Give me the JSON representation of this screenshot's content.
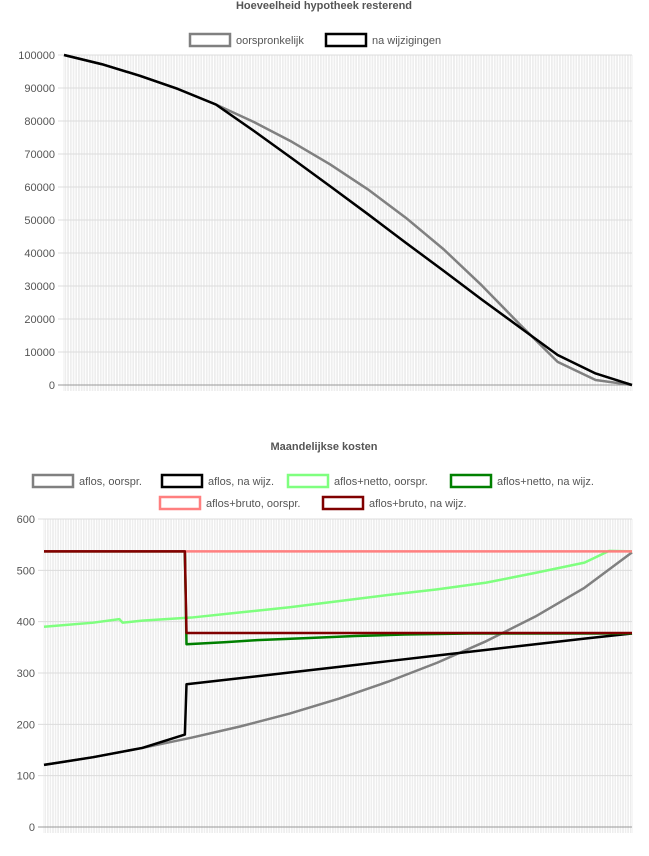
{
  "chart_data": [
    {
      "type": "line",
      "title": "Hoeveelheid hypotheek resterend",
      "xlabel": "",
      "ylabel": "",
      "ylim": [
        0,
        100000
      ],
      "yticks": [
        "0",
        "10000",
        "20000",
        "30000",
        "40000",
        "50000",
        "60000",
        "70000",
        "80000",
        "90000",
        "100000"
      ],
      "x_count": 360,
      "grid": true,
      "legend": "top",
      "series": [
        {
          "name": "oorspronkelijk",
          "color": "#808080",
          "x": [
            0,
            24,
            48,
            72,
            96,
            120,
            144,
            168,
            192,
            216,
            240,
            264,
            288,
            312,
            336,
            359
          ],
          "values": [
            100000,
            97200,
            93700,
            89700,
            85000,
            79700,
            73700,
            66900,
            59300,
            50700,
            41100,
            30200,
            18400,
            7000,
            1500,
            0
          ]
        },
        {
          "name": "na wijzigingen",
          "color": "#000000",
          "x": [
            0,
            24,
            48,
            72,
            96,
            120,
            144,
            168,
            192,
            216,
            240,
            264,
            288,
            312,
            336,
            359
          ],
          "values": [
            100000,
            97200,
            93700,
            89700,
            85000,
            77000,
            68700,
            60300,
            51800,
            43100,
            34600,
            25900,
            17500,
            9100,
            3500,
            0
          ]
        }
      ]
    },
    {
      "type": "line",
      "title": "Maandelijkse kosten",
      "xlabel": "",
      "ylabel": "",
      "ylim": [
        0,
        600
      ],
      "yticks": [
        "0",
        "100",
        "200",
        "300",
        "400",
        "500",
        "600"
      ],
      "x_count": 360,
      "grid": true,
      "legend": "top",
      "series": [
        {
          "name": "aflos, oorspr.",
          "color": "#808080",
          "x": [
            0,
            30,
            60,
            90,
            120,
            150,
            180,
            210,
            240,
            270,
            300,
            330,
            359
          ],
          "values": [
            121,
            136,
            154,
            174,
            196,
            221,
            250,
            283,
            320,
            362,
            410,
            466,
            535
          ]
        },
        {
          "name": "aflos, na wijz.",
          "color": "#000000",
          "x": [
            0,
            30,
            60,
            86,
            87,
            120,
            150,
            180,
            210,
            240,
            270,
            300,
            330,
            359
          ],
          "values": [
            121,
            136,
            154,
            180,
            278,
            290,
            301,
            312,
            323,
            334,
            345,
            356,
            367,
            377
          ]
        },
        {
          "name": "aflos+netto, oorspr.",
          "color": "#7fff7f",
          "x": [
            0,
            30,
            46,
            48,
            60,
            90,
            120,
            150,
            180,
            210,
            240,
            270,
            300,
            330,
            345,
            359
          ],
          "values": [
            390,
            398,
            405,
            398,
            402,
            408,
            418,
            428,
            440,
            452,
            463,
            476,
            495,
            515,
            538,
            537
          ]
        },
        {
          "name": "aflos+netto, na wijz.",
          "color": "#008000",
          "x": [
            0,
            86,
            87,
            110,
            130,
            160,
            190,
            220,
            260,
            300,
            359
          ],
          "values": [
            537,
            537,
            356,
            360,
            364,
            368,
            372,
            375,
            377,
            377,
            377
          ]
        },
        {
          "name": "aflos+bruto, oorspr.",
          "color": "#ff7f7f",
          "x": [
            0,
            359
          ],
          "values": [
            537,
            537
          ]
        },
        {
          "name": "aflos+bruto, na wijz.",
          "color": "#800000",
          "x": [
            0,
            86,
            87,
            359
          ],
          "values": [
            537,
            537,
            378,
            378
          ]
        }
      ]
    }
  ]
}
